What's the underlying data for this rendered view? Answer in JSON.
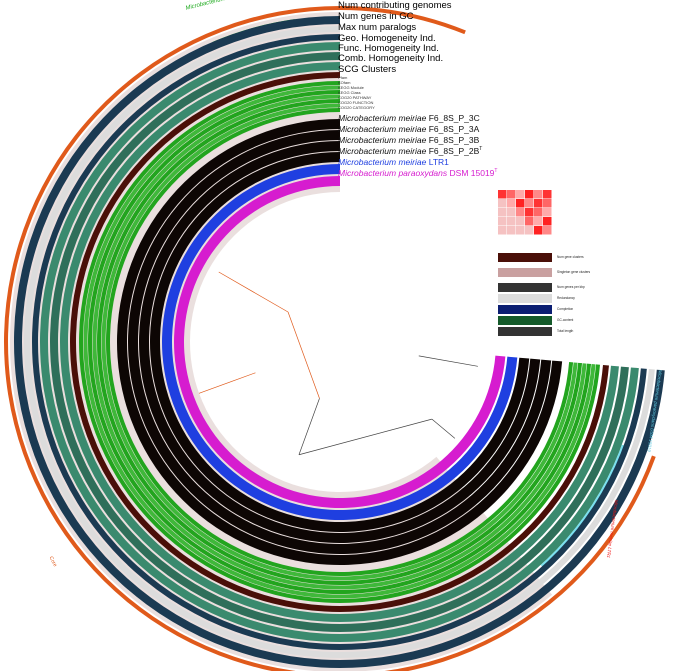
{
  "layer_labels": [
    {
      "text": "Num contributing genomes",
      "color": "#1a3550"
    },
    {
      "text": "Num genes in GC",
      "color": "#1a3550"
    },
    {
      "text": "Max num paralogs",
      "color": "#1a3550"
    },
    {
      "text": "Geo. Homogeneity Ind.",
      "color": "#2f7a5d"
    },
    {
      "text": "Func. Homogeneity Ind.",
      "color": "#2f7a5d"
    },
    {
      "text": "Comb. Homogeneity Ind.",
      "color": "#2f7a5d"
    },
    {
      "text": "SCG Clusters",
      "color": "#5a1a0c"
    }
  ],
  "function_labels": [
    "Pfam",
    "KOfam",
    "KEGG Module",
    "KEGG Class",
    "COG20 PATHWAY",
    "COG20 FUNCTION",
    "COG20 CATEGORY"
  ],
  "genomes": [
    {
      "species": "Microbacterium meiriae",
      "strain": "F6_8S_P_3C",
      "sup": "",
      "color": "#111111"
    },
    {
      "species": "Microbacterium meiriae",
      "strain": "F6_8S_P_3A",
      "sup": "",
      "color": "#111111"
    },
    {
      "species": "Microbacterium meiriae",
      "strain": "F6_8S_P_3B",
      "sup": "",
      "color": "#111111"
    },
    {
      "species": "Microbacterium meiriae",
      "strain": "F6_8S_P_2B",
      "sup": "T",
      "color": "#111111"
    },
    {
      "species": "Microbacterium meiriae",
      "strain": "LTR1",
      "sup": "",
      "color": "#1f3fe0"
    },
    {
      "species": "Microbacterium paraoxydans",
      "strain": "DSM 15019",
      "sup": "T",
      "color": "#d61ccf"
    }
  ],
  "bin_labels": {
    "core": "Core",
    "meiriae": "Microbacterium meiriae",
    "ltr1": "Microbacterium meiriae LTR1",
    "paraoxydans": "Microbacterium paraoxydans DSM 15019"
  },
  "side_legend": [
    "Num gene clusters",
    "Singleton gene clusters",
    "Num genes per kbp",
    "Redundancy",
    "Completion",
    "GC-content",
    "Total length"
  ],
  "colors": {
    "navy": "#1b3a52",
    "teal_dark": "#2f6f5a",
    "teal_mid": "#3a8a6e",
    "teal_light": "#b9d6cc",
    "maroon": "#4a0f08",
    "pink_bg": "#e8cfcc",
    "green": "#22a51e",
    "black": "#0d0604",
    "blue": "#1f3fe0",
    "magenta": "#d61ccf",
    "orange": "#e05a1b",
    "core_bg": "#d8c5c2",
    "red": "#ee1111",
    "cyan": "#7ae0f0"
  }
}
